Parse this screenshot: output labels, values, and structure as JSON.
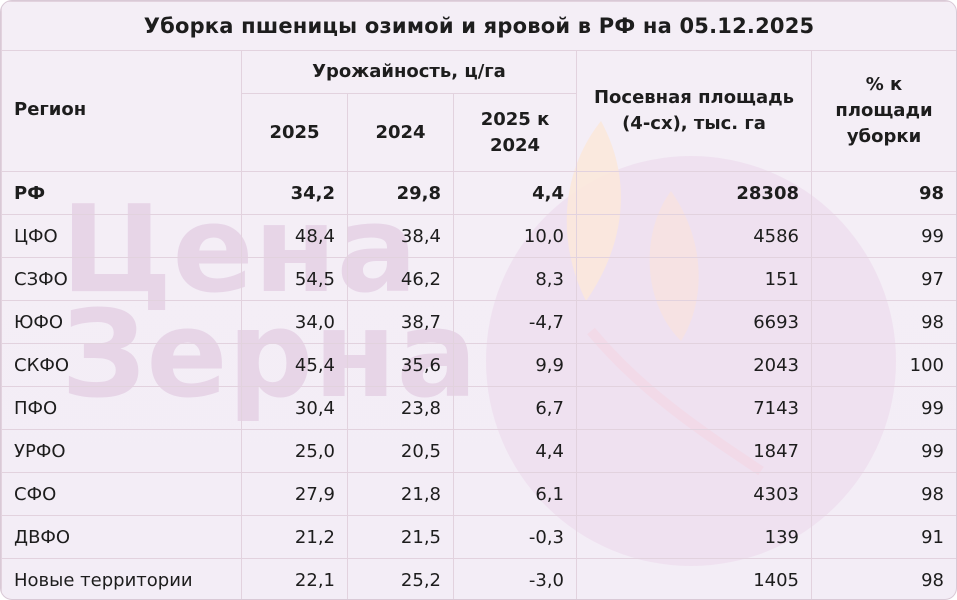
{
  "title": "Уборка пшеницы озимой и яровой в РФ на 05.12.2025",
  "watermark": {
    "line1": "Цена",
    "line2": "Зерна"
  },
  "headers": {
    "region": "Регион",
    "yield_group": "Урожайность, ц/га",
    "y2025": "2025",
    "y2024": "2024",
    "diff": "2025 к 2024",
    "area": "Посевная площадь (4-сх), тыс. га",
    "pct": "% к площади уборки"
  },
  "rows": [
    {
      "region": "РФ",
      "y2025": "34,2",
      "y2024": "29,8",
      "diff": "4,4",
      "area": "28308",
      "pct": "98",
      "bold": true
    },
    {
      "region": "ЦФО",
      "y2025": "48,4",
      "y2024": "38,4",
      "diff": "10,0",
      "area": "4586",
      "pct": "99"
    },
    {
      "region": "СЗФО",
      "y2025": "54,5",
      "y2024": "46,2",
      "diff": "8,3",
      "area": "151",
      "pct": "97"
    },
    {
      "region": "ЮФО",
      "y2025": "34,0",
      "y2024": "38,7",
      "diff": "-4,7",
      "area": "6693",
      "pct": "98"
    },
    {
      "region": "СКФО",
      "y2025": "45,4",
      "y2024": "35,6",
      "diff": "9,9",
      "area": "2043",
      "pct": "100"
    },
    {
      "region": "ПФО",
      "y2025": "30,4",
      "y2024": "23,8",
      "diff": "6,7",
      "area": "7143",
      "pct": "99"
    },
    {
      "region": "УРФО",
      "y2025": "25,0",
      "y2024": "20,5",
      "diff": "4,4",
      "area": "1847",
      "pct": "99"
    },
    {
      "region": "СФО",
      "y2025": "27,9",
      "y2024": "21,8",
      "diff": "6,1",
      "area": "4303",
      "pct": "98"
    },
    {
      "region": "ДВФО",
      "y2025": "21,2",
      "y2024": "21,5",
      "diff": "-0,3",
      "area": "139",
      "pct": "91"
    },
    {
      "region": "Новые территории",
      "y2025": "22,1",
      "y2024": "25,2",
      "diff": "-3,0",
      "area": "1405",
      "pct": "98"
    }
  ],
  "colors": {
    "background": "#f3edf6",
    "border": "#e2d2de",
    "text": "#1d1d1d",
    "watermark_text": "#e3cde3",
    "watermark_circle": "#eedcee",
    "watermark_leaf": "#fbe8dc"
  }
}
